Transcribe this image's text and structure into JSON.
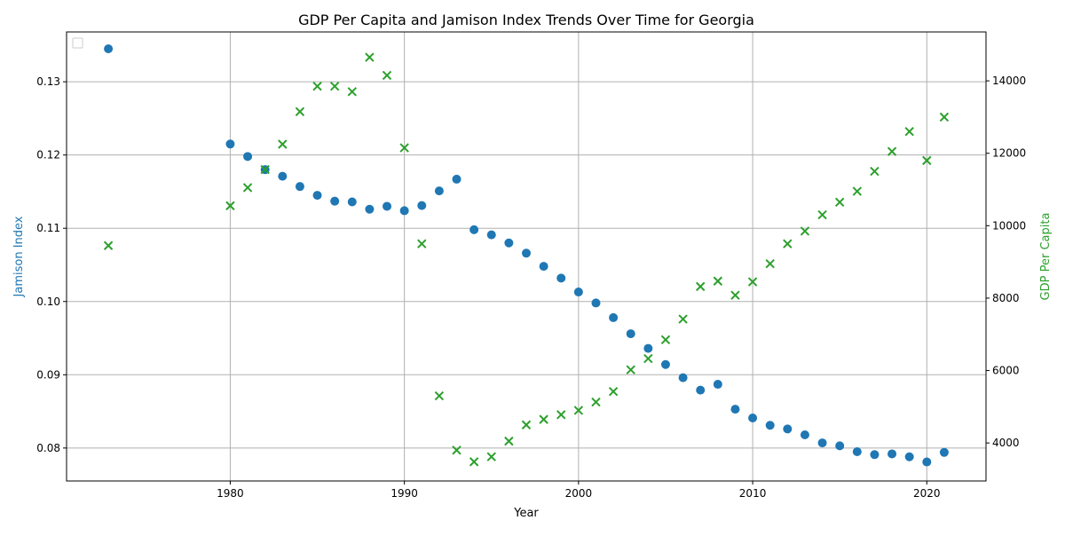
{
  "chart_data": {
    "type": "scatter",
    "title": "GDP Per Capita and Jamison Index Trends Over Time for Georgia",
    "xlabel": "Year",
    "ylabel_left": "Jamison Index",
    "ylabel_right": "GDP Per Capita",
    "xlim": [
      1970.6,
      2023.4
    ],
    "ylim_left": [
      0.0755,
      0.1368
    ],
    "ylim_right": [
      2950,
      15350
    ],
    "x_ticks": [
      1980,
      1990,
      2000,
      2010,
      2020
    ],
    "y_ticks_left": [
      0.08,
      0.09,
      0.1,
      0.11,
      0.12,
      0.13
    ],
    "y_ticks_left_labels": [
      "0.08",
      "0.09",
      "0.10",
      "0.11",
      "0.12",
      "0.13"
    ],
    "y_ticks_right": [
      4000,
      6000,
      8000,
      10000,
      12000,
      14000
    ],
    "grid": true,
    "legend": "top-left, empty",
    "colors": {
      "jamison": "#1f77b4",
      "gdp": "#2ca02c"
    },
    "series": [
      {
        "axis": "left",
        "marker": "circle",
        "x": [
          1973,
          1980,
          1981,
          1982,
          1983,
          1984,
          1985,
          1986,
          1987,
          1988,
          1989,
          1990,
          1991,
          1992,
          1993,
          1994,
          1995,
          1996,
          1997,
          1998,
          1999,
          2000,
          2001,
          2002,
          2003,
          2004,
          2005,
          2006,
          2007,
          2008,
          2009,
          2010,
          2011,
          2012,
          2013,
          2014,
          2015,
          2016,
          2017,
          2018,
          2019,
          2020,
          2021
        ],
        "values": [
          0.1345,
          0.1215,
          0.1198,
          0.118,
          0.1171,
          0.1157,
          0.1145,
          0.1137,
          0.1136,
          0.1126,
          0.113,
          0.1124,
          0.1131,
          0.1151,
          0.1167,
          0.1098,
          0.1091,
          0.108,
          0.1066,
          0.1048,
          0.1032,
          0.1013,
          0.0998,
          0.0978,
          0.0956,
          0.0936,
          0.0914,
          0.0896,
          0.0879,
          0.0887,
          0.0853,
          0.0841,
          0.0831,
          0.0826,
          0.0818,
          0.0807,
          0.0803,
          0.0795,
          0.0791,
          0.0792,
          0.0788,
          0.0781,
          0.0794
        ]
      },
      {
        "axis": "right",
        "marker": "x",
        "x": [
          1973,
          1980,
          1981,
          1982,
          1983,
          1984,
          1985,
          1986,
          1987,
          1988,
          1989,
          1990,
          1991,
          1992,
          1993,
          1994,
          1995,
          1996,
          1997,
          1998,
          1999,
          2000,
          2001,
          2002,
          2003,
          2004,
          2005,
          2006,
          2007,
          2008,
          2009,
          2010,
          2011,
          2012,
          2013,
          2014,
          2015,
          2016,
          2017,
          2018,
          2019,
          2020,
          2021
        ],
        "values": [
          9450,
          10550,
          11050,
          11550,
          12250,
          13150,
          13850,
          13850,
          13700,
          14650,
          14150,
          12150,
          9500,
          5300,
          3800,
          3480,
          3620,
          4050,
          4500,
          4650,
          4780,
          4900,
          5130,
          5420,
          6020,
          6330,
          6850,
          7420,
          8320,
          8470,
          8080,
          8450,
          8950,
          9500,
          9850,
          10300,
          10650,
          10950,
          11500,
          12050,
          12600,
          11800,
          13000
        ]
      }
    ]
  }
}
